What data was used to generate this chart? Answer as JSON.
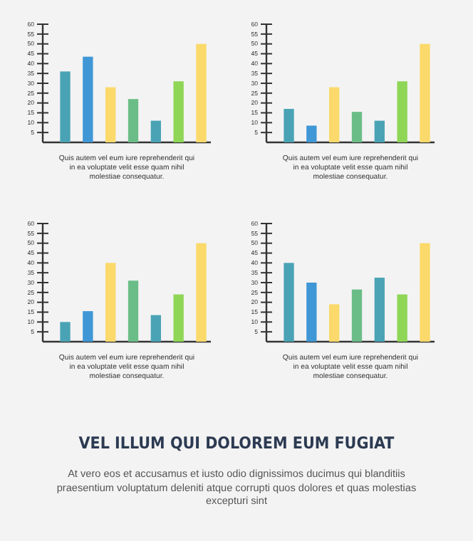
{
  "chart_data": [
    {
      "type": "bar",
      "categories": [
        null,
        null,
        null,
        null,
        null,
        null,
        null
      ],
      "values": [
        36,
        43.5,
        28,
        22,
        11,
        31,
        50
      ],
      "colors": [
        "#4aa3b5",
        "#3f97d6",
        "#fbd96a",
        "#6bbd88",
        "#4aa3b5",
        "#8fd656",
        "#fbd96a"
      ],
      "ylim": [
        0,
        60
      ],
      "yticks": [
        5,
        10,
        15,
        20,
        25,
        30,
        35,
        40,
        45,
        50,
        55,
        60
      ],
      "annotations": [
        "Quis autem vel eum iure reprehenderit qui in ea voluptate velit esse quam nihil molestiae consequatur."
      ]
    },
    {
      "type": "bar",
      "categories": [
        null,
        null,
        null,
        null,
        null,
        null,
        null
      ],
      "values": [
        17,
        8.5,
        28,
        15.5,
        11,
        31,
        50
      ],
      "colors": [
        "#4aa3b5",
        "#3f97d6",
        "#fbd96a",
        "#6bbd88",
        "#4aa3b5",
        "#8fd656",
        "#fbd96a"
      ],
      "ylim": [
        0,
        60
      ],
      "yticks": [
        5,
        10,
        15,
        20,
        25,
        30,
        35,
        40,
        45,
        50,
        55,
        60
      ],
      "annotations": [
        "Quis autem vel eum iure reprehenderit qui in ea voluptate velit esse quam nihil molestiae consequatur."
      ]
    },
    {
      "type": "bar",
      "categories": [
        null,
        null,
        null,
        null,
        null,
        null,
        null
      ],
      "values": [
        10,
        15.5,
        40,
        31,
        13.5,
        24,
        50
      ],
      "colors": [
        "#4aa3b5",
        "#3f97d6",
        "#fbd96a",
        "#6bbd88",
        "#4aa3b5",
        "#8fd656",
        "#fbd96a"
      ],
      "ylim": [
        0,
        60
      ],
      "yticks": [
        5,
        10,
        15,
        20,
        25,
        30,
        35,
        40,
        45,
        50,
        55,
        60
      ],
      "annotations": [
        "Quis autem vel eum iure reprehenderit qui in ea voluptate velit esse quam nihil molestiae consequatur."
      ]
    },
    {
      "type": "bar",
      "categories": [
        null,
        null,
        null,
        null,
        null,
        null,
        null
      ],
      "values": [
        40,
        30,
        19,
        26.5,
        32.5,
        24,
        50
      ],
      "colors": [
        "#4aa3b5",
        "#3f97d6",
        "#fbd96a",
        "#6bbd88",
        "#4aa3b5",
        "#8fd656",
        "#fbd96a"
      ],
      "ylim": [
        0,
        60
      ],
      "yticks": [
        5,
        10,
        15,
        20,
        25,
        30,
        35,
        40,
        45,
        50,
        55,
        60
      ],
      "annotations": [
        "Quis autem vel eum iure reprehenderit qui in ea voluptate velit esse quam nihil molestiae consequatur."
      ]
    },
    {
      "type": "other",
      "title": "VEL ILLUM QUI DOLOREM EUM FUGIAT",
      "annotations": [
        "At vero eos et accusamus et iusto odio dignissimos ducimus qui blanditiis praesentium voluptatum deleniti atque corrupti quos dolores et quas molestias excepturi sint"
      ]
    }
  ]
}
